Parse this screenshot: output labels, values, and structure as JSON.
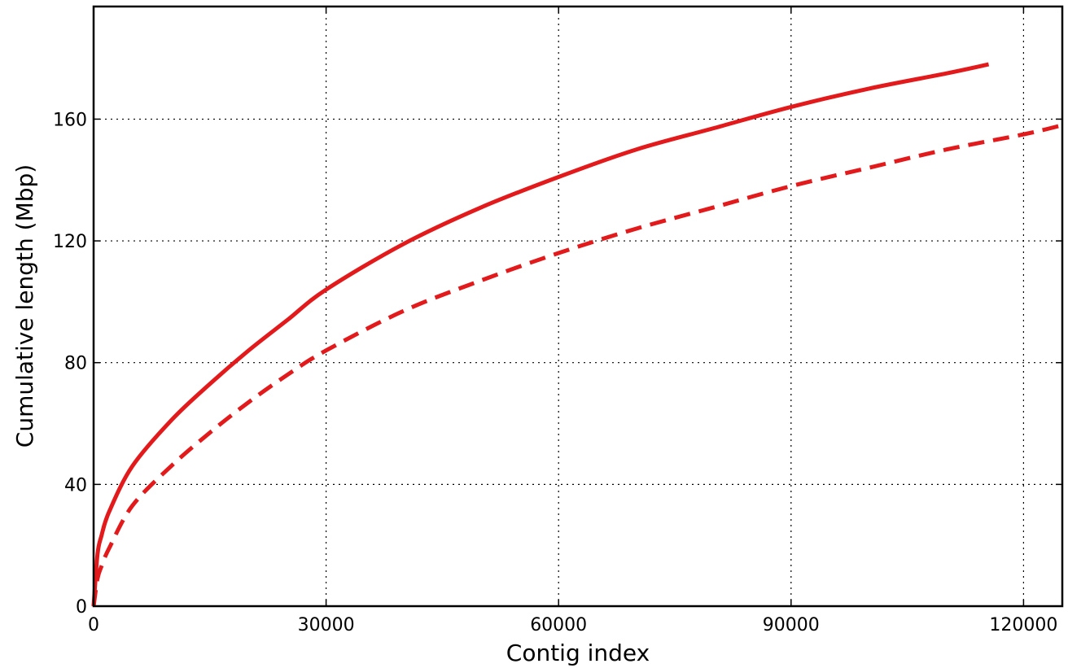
{
  "chart_data": {
    "type": "line",
    "title": "",
    "xlabel": "Contig index",
    "ylabel": "Cumulative length (Mbp)",
    "xlim": [
      0,
      125000
    ],
    "ylim": [
      0,
      197
    ],
    "x_ticks": [
      0,
      30000,
      60000,
      90000,
      120000
    ],
    "y_ticks": [
      0,
      40,
      80,
      120,
      160
    ],
    "x_tick_labels": [
      "0",
      "30000",
      "60000",
      "90000",
      "120000"
    ],
    "y_tick_labels": [
      "0",
      "40",
      "80",
      "120",
      "160"
    ],
    "grid": true,
    "series": [
      {
        "style": "solid",
        "color": "#e31a1c",
        "x": [
          0,
          500,
          1000,
          2000,
          5000,
          10000,
          15000,
          20000,
          25000,
          30000,
          40000,
          50000,
          60000,
          70000,
          80000,
          90000,
          100000,
          110000,
          115500
        ],
        "y": [
          0,
          17,
          23,
          31,
          46,
          61,
          73,
          84,
          94,
          104,
          119,
          131,
          141,
          150,
          157,
          164,
          170,
          175,
          178
        ]
      },
      {
        "style": "dashed",
        "color": "#e31a1c",
        "x": [
          0,
          500,
          1000,
          2000,
          5000,
          10000,
          15000,
          20000,
          25000,
          30000,
          40000,
          50000,
          60000,
          70000,
          80000,
          90000,
          100000,
          110000,
          120000,
          125000
        ],
        "y": [
          0,
          9,
          13,
          19,
          33,
          46,
          57,
          67,
          76,
          84,
          97,
          107,
          116,
          124,
          131,
          138,
          144,
          150,
          155,
          158
        ]
      }
    ]
  }
}
